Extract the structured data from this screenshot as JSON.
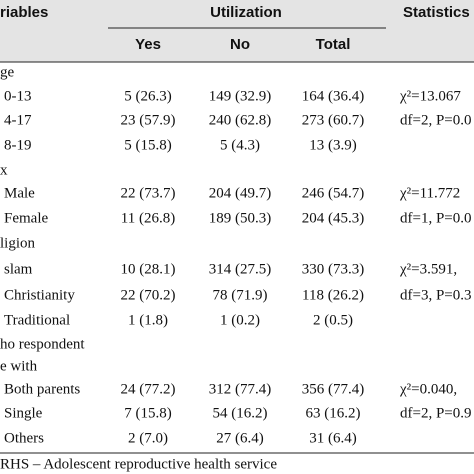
{
  "header": {
    "variable": "riables",
    "utilization": "Utilization",
    "statistics": "Statistics",
    "columns": [
      "Yes",
      "No",
      "Total"
    ]
  },
  "rows": [
    {
      "label": "ge"
    },
    {
      "label": "0-13",
      "cells": [
        "5 (26.3)",
        "149 (32.9)",
        "164 (36.4)"
      ],
      "stat": "χ²=13.067"
    },
    {
      "label": "4-17",
      "cells": [
        "23 (57.9)",
        "240 (62.8)",
        "273 (60.7)"
      ],
      "stat": "df=2, P=0.0"
    },
    {
      "label": "8-19",
      "cells": [
        "5 (15.8)",
        "5 (4.3)",
        "13 (3.9)"
      ]
    },
    {
      "label": "x"
    },
    {
      "label": "Male",
      "cells": [
        "22 (73.7)",
        "204 (49.7)",
        "246 (54.7)"
      ],
      "stat": "χ²=11.772"
    },
    {
      "label": "Female",
      "cells": [
        "11 (26.8)",
        "189 (50.3)",
        "204 (45.3)"
      ],
      "stat": "df=1, P=0.0"
    },
    {
      "label": "ligion"
    },
    {
      "label": "slam",
      "cells": [
        "10 (28.1)",
        "314 (27.5)",
        "330 (73.3)"
      ],
      "stat": "χ²=3.591,"
    },
    {
      "label": "Christianity",
      "cells": [
        "22 (70.2)",
        "78 (71.9)",
        "118 (26.2)"
      ],
      "stat": "df=3, P=0.3"
    },
    {
      "label": "Traditional",
      "cells": [
        "1 (1.8)",
        "1 (0.2)",
        "2 (0.5)"
      ]
    },
    {
      "label": "ho respondent"
    },
    {
      "label": "e with"
    },
    {
      "label": "Both parents",
      "cells": [
        "24 (77.2)",
        "312 (77.4)",
        "356 (77.4)"
      ],
      "stat": "χ²=0.040,"
    },
    {
      "label": "Single",
      "cells": [
        "7 (15.8)",
        "54 (16.2)",
        "63 (16.2)"
      ],
      "stat": "df=2, P=0.9"
    },
    {
      "label": "Others",
      "cells": [
        "2 (7.0)",
        "27 (6.4)",
        "31 (6.4)"
      ]
    }
  ],
  "footer": "RHS – Adolescent reproductive health service"
}
